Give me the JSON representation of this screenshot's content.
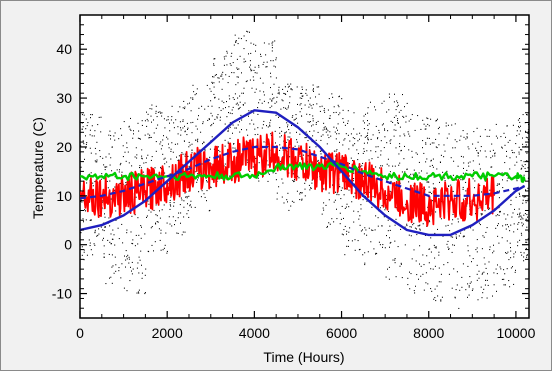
{
  "chart_data": {
    "type": "line",
    "xlabel": "Time (Hours)",
    "ylabel": "Temperature (C)",
    "xlim": [
      0,
      10300
    ],
    "ylim": [
      -15,
      47
    ],
    "x_ticks": [
      0,
      2000,
      4000,
      6000,
      8000,
      10000
    ],
    "x_tick_labels": [
      "0",
      "2000",
      "4000",
      "6000",
      "8000",
      "10000"
    ],
    "y_ticks": [
      -10,
      0,
      10,
      20,
      30,
      40
    ],
    "y_tick_labels": [
      "-10",
      "0",
      "10",
      "20",
      "30",
      "40"
    ],
    "grid": false,
    "legend": "none",
    "series": [
      {
        "style": "dotted scatter",
        "color": "#000000",
        "x": [
          0,
          500,
          1000,
          1500,
          2000,
          2500,
          3000,
          3500,
          4000,
          4500,
          5000,
          5500,
          6000,
          6500,
          7000,
          7500,
          8000,
          8500,
          9000,
          9500,
          10000
        ],
        "y_min": [
          -3,
          -8,
          -10,
          -2,
          2,
          7,
          13,
          14,
          13,
          7,
          9,
          2,
          -3,
          -5,
          -7,
          -10,
          -12,
          -13,
          -12,
          -10,
          -4
        ],
        "y_max": [
          27,
          24,
          26,
          29,
          30,
          33,
          40,
          44,
          42,
          33,
          33,
          31,
          28,
          30,
          31,
          27,
          26,
          25,
          24,
          25,
          27
        ]
      },
      {
        "style": "solid",
        "color": "#ff0000",
        "x": [
          0,
          500,
          1000,
          1500,
          2000,
          2500,
          3000,
          3500,
          4000,
          4500,
          5000,
          5500,
          6000,
          6500,
          7000,
          7500,
          8000,
          8500,
          9000,
          9500
        ],
        "y": [
          11,
          10,
          10,
          11,
          13,
          15,
          16,
          17,
          18,
          19,
          17,
          15,
          15,
          13,
          11,
          9,
          8,
          9,
          9,
          10
        ]
      },
      {
        "style": "solid",
        "color": "#00cc00",
        "x": [
          0,
          500,
          1000,
          1500,
          2000,
          2500,
          3000,
          3500,
          4000,
          4500,
          5000,
          5500,
          6000,
          6500,
          7000,
          7500,
          8000,
          8500,
          9000,
          9500,
          10000,
          10200
        ],
        "y": [
          14,
          14,
          14,
          14,
          14,
          14,
          14,
          14,
          14,
          16,
          16,
          16,
          16,
          15,
          14,
          14,
          14,
          14,
          14,
          14,
          14,
          13
        ]
      },
      {
        "style": "solid",
        "color": "#1f1fbf",
        "x": [
          0,
          500,
          1000,
          1500,
          2000,
          2500,
          3000,
          3500,
          4000,
          4500,
          5000,
          5500,
          6000,
          6500,
          7000,
          7500,
          8000,
          8500,
          9000,
          9500,
          10000,
          10200
        ],
        "y": [
          3,
          4,
          6,
          9,
          13,
          17,
          21,
          25,
          27.5,
          27,
          24,
          20,
          15,
          10,
          6,
          3,
          2,
          2,
          4,
          7,
          11,
          12
        ]
      },
      {
        "style": "dashed",
        "color": "#1f1fbf",
        "x": [
          0,
          500,
          1000,
          1500,
          2000,
          2500,
          3000,
          3500,
          4000,
          4500,
          5000,
          5500,
          6000,
          6500,
          7000,
          7500,
          8000,
          8500,
          9000,
          9500,
          10000,
          10200
        ],
        "y": [
          9.5,
          10,
          11,
          12.5,
          14,
          15.5,
          17.5,
          19,
          20,
          20,
          19.5,
          18,
          16.5,
          14.5,
          13,
          11.5,
          10,
          10,
          10,
          10.5,
          11.5,
          12
        ]
      }
    ]
  }
}
